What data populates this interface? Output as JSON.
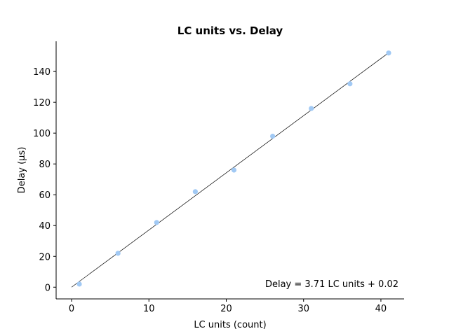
{
  "chart_data": {
    "type": "scatter",
    "title": "LC units vs. Delay",
    "xlabel": "LC units (count)",
    "ylabel": "Delay (µs)",
    "xlim": [
      -2,
      43
    ],
    "ylim": [
      -7.6,
      159.6
    ],
    "xticks": [
      0,
      10,
      20,
      30,
      40
    ],
    "yticks": [
      0,
      20,
      40,
      60,
      80,
      100,
      120,
      140
    ],
    "grid": false,
    "legend": "none",
    "series": [
      {
        "x": [
          1,
          6,
          11,
          16,
          21,
          26,
          31,
          36,
          41
        ],
        "y": [
          2,
          22,
          42,
          62,
          76,
          98,
          116,
          132,
          152
        ],
        "color": "#a1c9f4"
      }
    ],
    "fit_line": {
      "slope": 3.71,
      "intercept": 0.02,
      "x_range": [
        0,
        41
      ],
      "color": "#000000"
    },
    "annotation": "Delay = 3.71 LC units + 0.02"
  }
}
